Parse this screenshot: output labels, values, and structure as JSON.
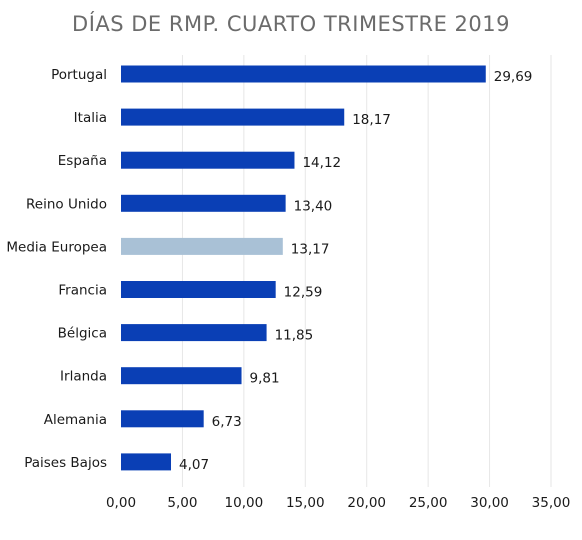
{
  "chart_data": {
    "type": "bar",
    "orientation": "horizontal",
    "title": "DÍAS DE RMP. CUARTO TRIMESTRE 2019",
    "xlabel": "",
    "ylabel": "",
    "xlim": [
      0,
      35
    ],
    "x_ticks": [
      "0,00",
      "5,00",
      "10,00",
      "15,00",
      "20,00",
      "25,00",
      "30,00",
      "35,00"
    ],
    "grid": "vertical",
    "categories": [
      "Portugal",
      "Italia",
      "España",
      "Reino Unido",
      "Media Europea",
      "Francia",
      "Bélgica",
      "Irlanda",
      "Alemania",
      "Paises Bajos"
    ],
    "values": [
      29.69,
      18.17,
      14.12,
      13.4,
      13.17,
      12.59,
      11.85,
      9.81,
      6.73,
      4.07
    ],
    "value_labels": [
      "29,69",
      "18,17",
      "14,12",
      "13,40",
      "13,17",
      "12,59",
      "11,85",
      "9,81",
      "6,73",
      "4,07"
    ],
    "highlight_category": "Media Europea",
    "colors": {
      "bar": "#0a3fb5",
      "highlight": "#a9c1d6",
      "grid": "#e6e6e6",
      "text": "#1a1a1a",
      "title": "#6b6b6b"
    }
  }
}
